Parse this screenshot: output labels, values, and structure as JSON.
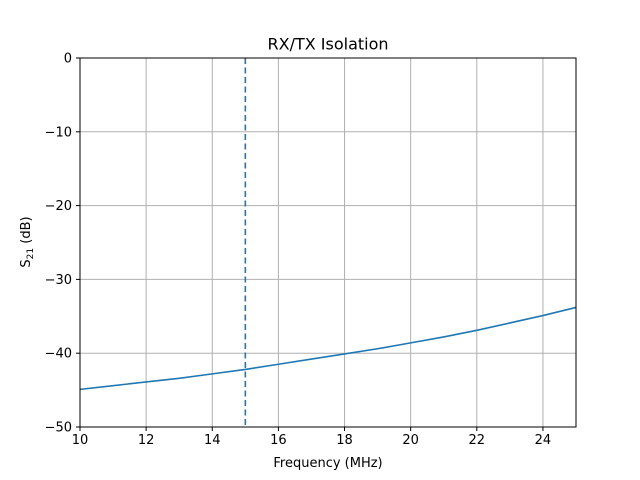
{
  "chart_data": {
    "type": "line",
    "title": "RX/TX Isolation",
    "xlabel": "Frequency (MHz)",
    "ylabel_main": "S",
    "ylabel_sub": "21",
    "ylabel_unit": " (dB)",
    "xlim": [
      10,
      25
    ],
    "ylim": [
      -50,
      0
    ],
    "xticks": [
      10,
      12,
      14,
      16,
      18,
      20,
      22,
      24
    ],
    "yticks": [
      0,
      -10,
      -20,
      -30,
      -40,
      -50
    ],
    "ytick_labels": [
      "0",
      "−10",
      "−20",
      "−30",
      "−40",
      "−50"
    ],
    "grid": true,
    "series": [
      {
        "name": "S21",
        "color": "#1f77b4",
        "style": "solid",
        "x": [
          10,
          11,
          12,
          13,
          14,
          15,
          16,
          17,
          18,
          19,
          20,
          21,
          22,
          23,
          24,
          25
        ],
        "y": [
          -44.9,
          -44.4,
          -43.9,
          -43.4,
          -42.8,
          -42.2,
          -41.5,
          -40.8,
          -40.1,
          -39.4,
          -38.6,
          -37.8,
          -36.9,
          -35.9,
          -34.9,
          -33.8
        ]
      }
    ],
    "vline": {
      "x": 15,
      "color": "#1f77b4",
      "style": "dashed"
    }
  }
}
